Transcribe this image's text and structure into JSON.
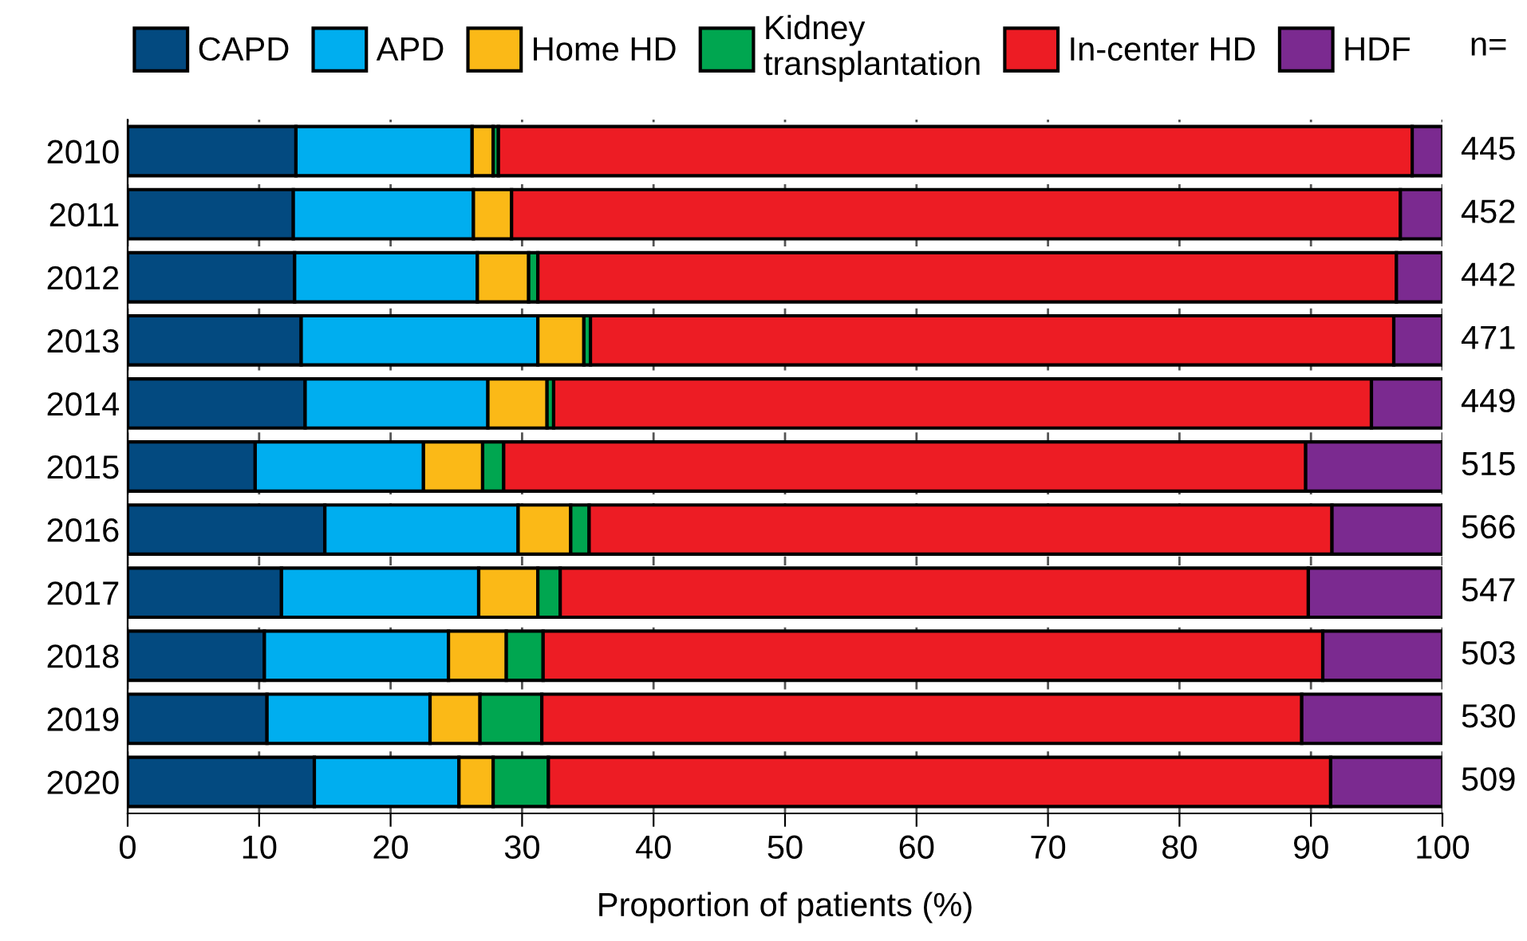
{
  "chart_data": {
    "type": "bar",
    "orientation": "horizontal",
    "stacked": true,
    "xlabel": "Proportion of patients (%)",
    "categories": [
      "2010",
      "2011",
      "2012",
      "2013",
      "2014",
      "2015",
      "2016",
      "2017",
      "2018",
      "2019",
      "2020"
    ],
    "series": [
      {
        "name": "CAPD",
        "color": "#034a80",
        "values": [
          12.8,
          12.6,
          12.7,
          13.2,
          13.5,
          9.7,
          15.0,
          11.7,
          10.4,
          10.6,
          14.2
        ]
      },
      {
        "name": "APD",
        "color": "#00aeef",
        "values": [
          13.4,
          13.7,
          13.9,
          18.0,
          13.9,
          12.8,
          14.7,
          15.0,
          14.0,
          12.4,
          11.0
        ]
      },
      {
        "name": "Home HD",
        "color": "#fbb917",
        "values": [
          1.6,
          2.9,
          3.9,
          3.5,
          4.5,
          4.5,
          4.0,
          4.5,
          4.4,
          3.8,
          2.6
        ]
      },
      {
        "name": "Kidney\ntransplantation",
        "color": "#00a650",
        "values": [
          0.4,
          0,
          0.7,
          0.5,
          0.5,
          1.6,
          1.4,
          1.7,
          2.8,
          4.7,
          4.2
        ]
      },
      {
        "name": "In-center HD",
        "color": "#ed1c24",
        "values": [
          69.5,
          67.6,
          65.3,
          61.1,
          62.2,
          61.0,
          56.5,
          56.9,
          59.3,
          57.8,
          59.5
        ]
      },
      {
        "name": "HDF",
        "color": "#7b2a90",
        "values": [
          2.3,
          3.2,
          3.5,
          3.7,
          5.4,
          10.4,
          8.4,
          10.2,
          9.1,
          10.7,
          8.5
        ]
      }
    ],
    "xlim": [
      0,
      100
    ],
    "xticks": [
      0,
      10,
      20,
      30,
      40,
      50,
      60,
      70,
      80,
      90,
      100
    ],
    "grid": "x",
    "legend": "top",
    "annotations": [
      "n=",
      "445",
      "452",
      "442",
      "471",
      "449",
      "515",
      "566",
      "547",
      "503",
      "530",
      "509"
    ]
  }
}
